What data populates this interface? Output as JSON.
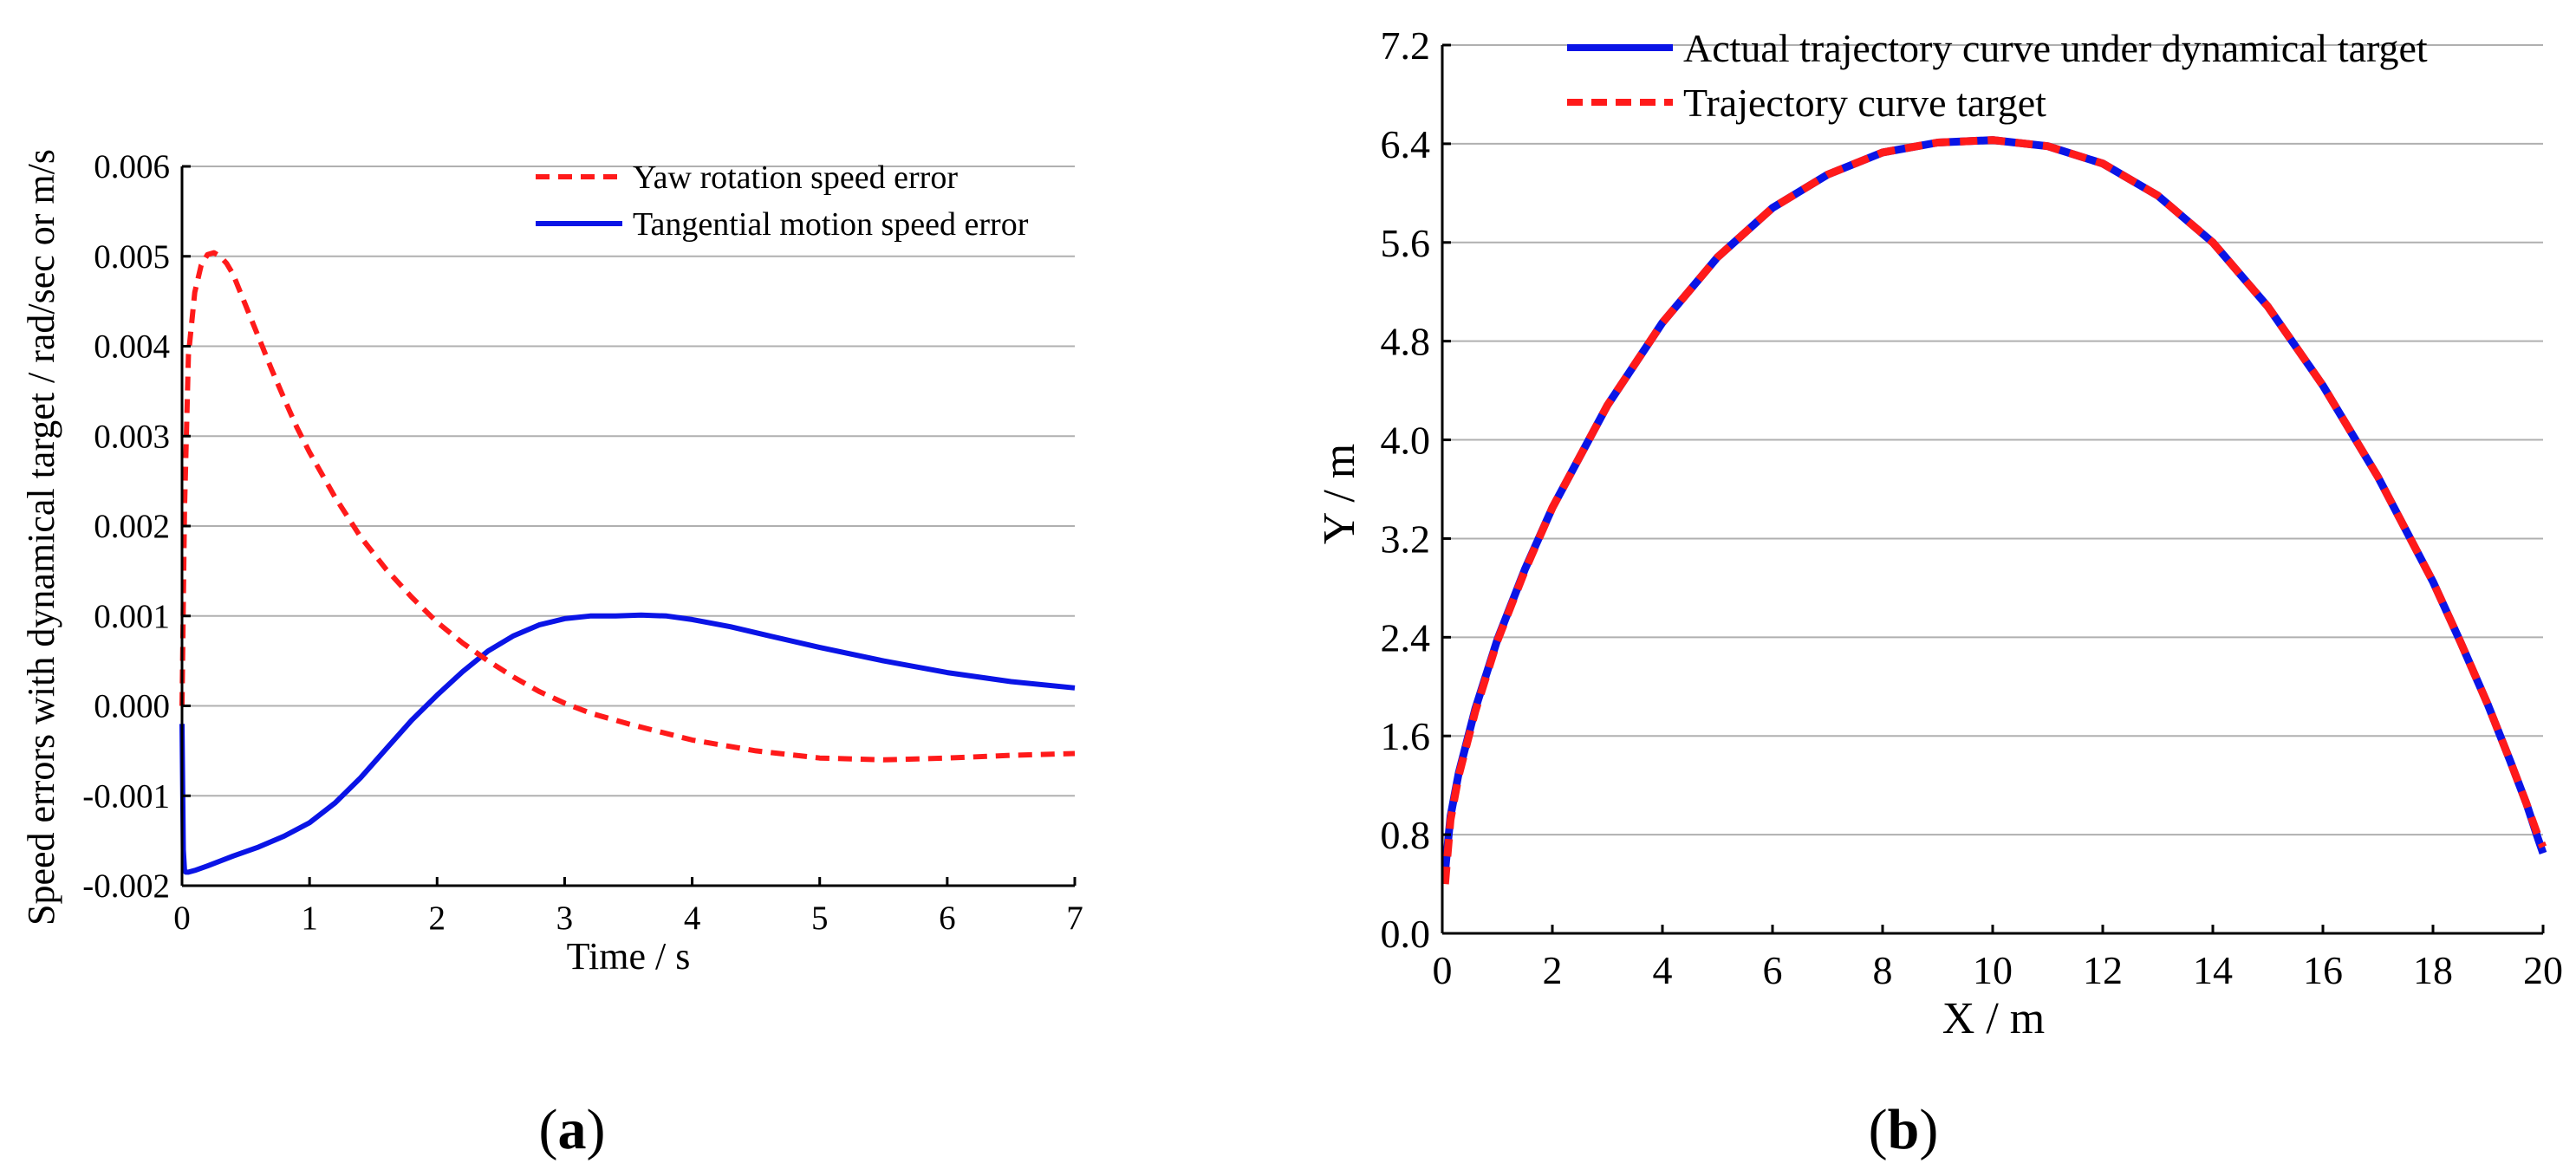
{
  "colors": {
    "red": "#ff1a1a",
    "blue": "#0a14e6",
    "grid": "#b0b0b0"
  },
  "chart_data": [
    {
      "type": "line",
      "panel_label": "a",
      "title": "",
      "xlabel": "Time / s",
      "ylabel": "Speed errors with dynamical target / rad/sec or m/s",
      "xlim": [
        0,
        7
      ],
      "ylim": [
        -0.002,
        0.006
      ],
      "xticks": [
        0,
        1,
        2,
        3,
        4,
        5,
        6,
        7
      ],
      "xtick_labels": [
        "0",
        "1",
        "2",
        "3",
        "4",
        "5",
        "6",
        "7"
      ],
      "yticks": [
        -0.002,
        -0.001,
        0.0,
        0.001,
        0.002,
        0.003,
        0.004,
        0.005,
        0.006
      ],
      "ytick_labels": [
        "-0.002",
        "-0.001",
        "0.000",
        "0.001",
        "0.002",
        "0.003",
        "0.004",
        "0.005",
        "0.006"
      ],
      "grid": "horizontal",
      "legend_position": "top-right",
      "series": [
        {
          "name": "Yaw rotation speed error",
          "style": "dashed",
          "color": "#ff1a1a",
          "x": [
            0,
            0.02,
            0.05,
            0.1,
            0.15,
            0.2,
            0.25,
            0.3,
            0.35,
            0.4,
            0.5,
            0.6,
            0.7,
            0.8,
            0.9,
            1.0,
            1.2,
            1.4,
            1.6,
            1.8,
            2.0,
            2.2,
            2.4,
            2.6,
            2.8,
            3.0,
            3.2,
            3.5,
            4.0,
            4.5,
            5.0,
            5.5,
            6.0,
            6.5,
            7.0
          ],
          "y": [
            0.0,
            0.0022,
            0.0039,
            0.0046,
            0.0049,
            0.00502,
            0.00504,
            0.005,
            0.00492,
            0.0048,
            0.00445,
            0.0041,
            0.00375,
            0.00342,
            0.0031,
            0.00282,
            0.00232,
            0.00188,
            0.00152,
            0.00121,
            0.00093,
            0.0007,
            0.0005,
            0.00032,
            0.00016,
            3e-05,
            -8e-05,
            -0.0002,
            -0.00038,
            -0.0005,
            -0.00058,
            -0.0006,
            -0.00058,
            -0.00055,
            -0.00053
          ]
        },
        {
          "name": "Tangential motion speed error",
          "style": "solid",
          "color": "#0a14e6",
          "x": [
            0,
            0.01,
            0.02,
            0.03,
            0.05,
            0.1,
            0.2,
            0.4,
            0.6,
            0.8,
            1.0,
            1.2,
            1.4,
            1.6,
            1.8,
            2.0,
            2.2,
            2.4,
            2.6,
            2.8,
            3.0,
            3.2,
            3.4,
            3.6,
            3.8,
            4.0,
            4.3,
            4.6,
            5.0,
            5.5,
            6.0,
            6.5,
            7.0
          ],
          "y": [
            -0.0002,
            -0.0016,
            -0.00183,
            -0.00185,
            -0.00185,
            -0.00183,
            -0.00178,
            -0.00167,
            -0.00157,
            -0.00145,
            -0.0013,
            -0.00108,
            -0.0008,
            -0.00048,
            -0.00016,
            0.00012,
            0.00038,
            0.00061,
            0.00078,
            0.0009,
            0.00097,
            0.001,
            0.001,
            0.00101,
            0.001,
            0.00096,
            0.00088,
            0.00078,
            0.00065,
            0.0005,
            0.00037,
            0.00027,
            0.0002
          ]
        }
      ]
    },
    {
      "type": "line",
      "panel_label": "b",
      "title": "",
      "xlabel": "X / m",
      "ylabel": "Y / m",
      "xlim": [
        0,
        20
      ],
      "ylim": [
        0,
        7.2
      ],
      "xticks": [
        0,
        2,
        4,
        6,
        8,
        10,
        12,
        14,
        16,
        18,
        20
      ],
      "xtick_labels": [
        "0",
        "2",
        "4",
        "6",
        "8",
        "10",
        "12",
        "14",
        "16",
        "18",
        "20"
      ],
      "yticks": [
        0,
        0.8,
        1.6,
        2.4,
        3.2,
        4.0,
        4.8,
        5.6,
        6.4,
        7.2
      ],
      "ytick_labels": [
        "0.0",
        "0.8",
        "1.6",
        "2.4",
        "3.2",
        "4.0",
        "4.8",
        "5.6",
        "6.4",
        "7.2"
      ],
      "grid": "horizontal",
      "legend_position": "top-right",
      "series": [
        {
          "name": "Actual trajectory curve under dynamical target",
          "style": "solid",
          "color": "#0a14e6",
          "x": [
            0.05,
            0.15,
            0.3,
            0.6,
            1.0,
            1.5,
            2.0,
            3.0,
            4.0,
            5.0,
            6.0,
            7.0,
            8.0,
            9.0,
            10.0,
            11.0,
            12.0,
            13.0,
            14.0,
            15.0,
            16.0,
            17.0,
            18.0,
            18.5,
            19.0,
            19.4,
            19.7,
            19.9,
            20.0
          ],
          "y": [
            0.5,
            0.95,
            1.3,
            1.82,
            2.38,
            2.95,
            3.45,
            4.28,
            4.95,
            5.48,
            5.88,
            6.15,
            6.33,
            6.41,
            6.43,
            6.38,
            6.24,
            5.98,
            5.6,
            5.08,
            4.44,
            3.7,
            2.85,
            2.36,
            1.85,
            1.4,
            1.05,
            0.78,
            0.65
          ]
        },
        {
          "name": "Trajectory curve target",
          "style": "dashed",
          "color": "#ff1a1a",
          "x": [
            0.05,
            0.15,
            0.3,
            0.6,
            1.0,
            1.5,
            2.0,
            3.0,
            4.0,
            5.0,
            6.0,
            7.0,
            8.0,
            9.0,
            10.0,
            11.0,
            12.0,
            13.0,
            14.0,
            15.0,
            16.0,
            17.0,
            18.0,
            18.5,
            19.0,
            19.4,
            19.7,
            19.9,
            20.0
          ],
          "y": [
            0.4,
            0.92,
            1.28,
            1.8,
            2.37,
            2.94,
            3.45,
            4.28,
            4.95,
            5.48,
            5.88,
            6.15,
            6.33,
            6.41,
            6.43,
            6.38,
            6.24,
            5.98,
            5.6,
            5.08,
            4.44,
            3.7,
            2.85,
            2.36,
            1.85,
            1.4,
            1.05,
            0.8,
            0.7
          ]
        }
      ]
    }
  ]
}
